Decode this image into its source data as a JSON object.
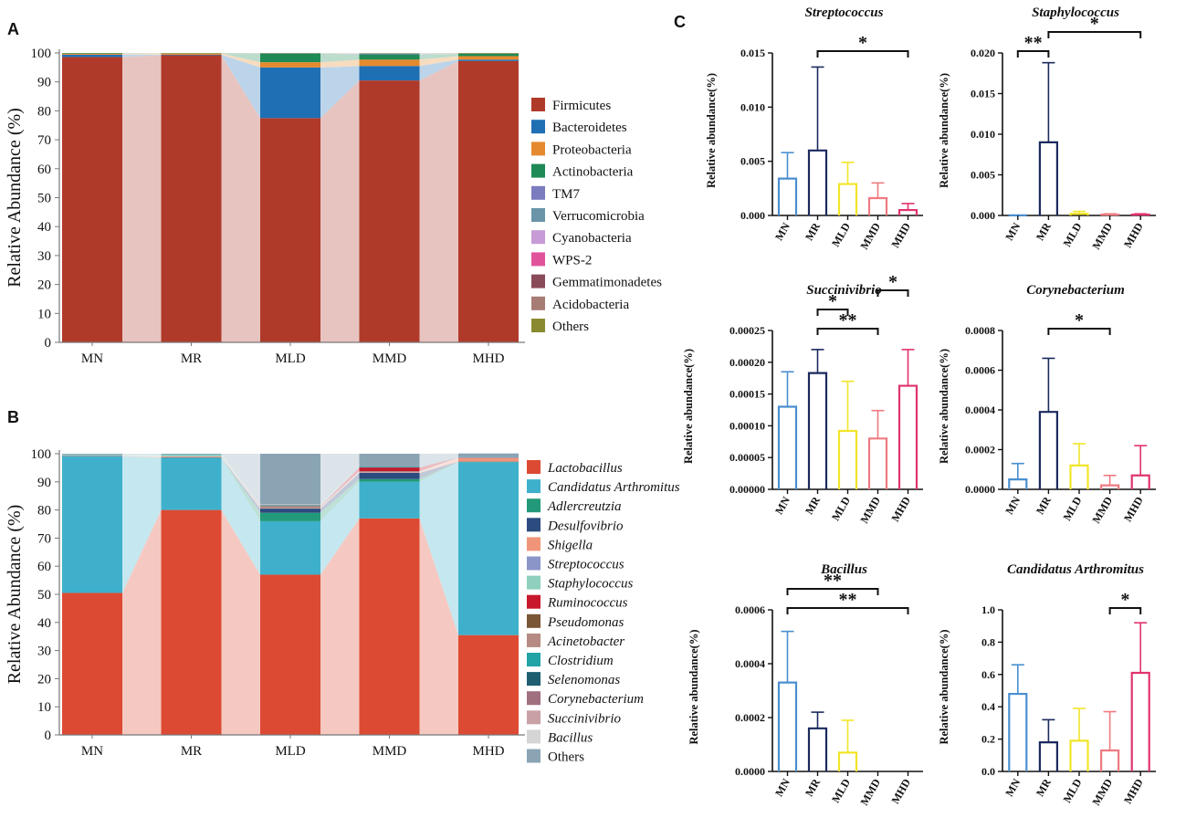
{
  "panel_labels": {
    "a": "A",
    "b": "B",
    "c": "C"
  },
  "chart_data": [
    {
      "type": "bar",
      "subtype": "stacked-100",
      "panel": "A",
      "ylabel": "Relative Abundance (%)",
      "ylim": [
        0,
        100
      ],
      "yticks": [
        0,
        10,
        20,
        30,
        40,
        50,
        60,
        70,
        80,
        90,
        100
      ],
      "categories": [
        "MN",
        "MR",
        "MLD",
        "MMD",
        "MHD"
      ],
      "series": [
        {
          "name": "Firmicutes",
          "color": "#b03a2a",
          "italic": false,
          "values": [
            98.6,
            99.2,
            77.5,
            90.5,
            97.2
          ]
        },
        {
          "name": "Bacteroidetes",
          "color": "#1f6fb4",
          "italic": false,
          "values": [
            0.8,
            0.2,
            17.5,
            5.0,
            0.5
          ]
        },
        {
          "name": "Proteobacteria",
          "color": "#e58a2e",
          "italic": false,
          "values": [
            0.3,
            0.4,
            1.8,
            2.2,
            1.2
          ]
        },
        {
          "name": "Actinobacteria",
          "color": "#1f8a55",
          "italic": false,
          "values": [
            0.2,
            0.1,
            3.0,
            1.8,
            0.8
          ]
        },
        {
          "name": "TM7",
          "color": "#7b7bbf",
          "italic": false,
          "values": [
            0.0,
            0.0,
            0.1,
            0.2,
            0.0
          ]
        },
        {
          "name": "Verrucomicrobia",
          "color": "#6a95a8",
          "italic": false,
          "values": [
            0.0,
            0.0,
            0.0,
            0.1,
            0.1
          ]
        },
        {
          "name": "Cyanobacteria",
          "color": "#c79bd6",
          "italic": false,
          "values": [
            0.0,
            0.0,
            0.0,
            0.1,
            0.0
          ]
        },
        {
          "name": "WPS-2",
          "color": "#e0539b",
          "italic": false,
          "values": [
            0.0,
            0.0,
            0.0,
            0.0,
            0.0
          ]
        },
        {
          "name": "Gemmatimonadetes",
          "color": "#8a4a5a",
          "italic": false,
          "values": [
            0.0,
            0.0,
            0.0,
            0.0,
            0.0
          ]
        },
        {
          "name": "Acidobacteria",
          "color": "#a67c74",
          "italic": false,
          "values": [
            0.0,
            0.0,
            0.0,
            0.0,
            0.0
          ]
        },
        {
          "name": "Others",
          "color": "#8a8a30",
          "italic": false,
          "values": [
            0.1,
            0.1,
            0.1,
            0.1,
            0.2
          ]
        }
      ]
    },
    {
      "type": "bar",
      "subtype": "stacked-100",
      "panel": "B",
      "ylabel": "Relative Abundance (%)",
      "ylim": [
        0,
        100
      ],
      "yticks": [
        0,
        10,
        20,
        30,
        40,
        50,
        60,
        70,
        80,
        90,
        100
      ],
      "categories": [
        "MN",
        "MR",
        "MLD",
        "MMD",
        "MHD"
      ],
      "series": [
        {
          "name": "Lactobacillus",
          "color": "#dd4a33",
          "italic": true,
          "values": [
            50.5,
            80.0,
            57.0,
            77.0,
            35.5
          ]
        },
        {
          "name": "Candidatus Arthromitus",
          "color": "#3fb0cb",
          "italic": true,
          "values": [
            48.5,
            18.5,
            19.0,
            13.0,
            61.5
          ]
        },
        {
          "name": "Adlercreutzia",
          "color": "#229a7a",
          "italic": true,
          "values": [
            0.1,
            0.1,
            3.0,
            1.0,
            0.1
          ]
        },
        {
          "name": "Desulfovibrio",
          "color": "#2c4b7e",
          "italic": true,
          "values": [
            0.1,
            0.1,
            1.5,
            2.2,
            0.1
          ]
        },
        {
          "name": "Shigella",
          "color": "#f0957a",
          "italic": true,
          "values": [
            0.1,
            0.3,
            0.2,
            0.2,
            1.2
          ]
        },
        {
          "name": "Streptococcus",
          "color": "#8b95c8",
          "italic": true,
          "values": [
            0.1,
            0.1,
            0.1,
            0.1,
            0.1
          ]
        },
        {
          "name": "Staphylococcus",
          "color": "#8fcfbd",
          "italic": true,
          "values": [
            0.2,
            0.5,
            0.2,
            0.2,
            0.1
          ]
        },
        {
          "name": "Ruminococcus",
          "color": "#c8182b",
          "italic": true,
          "values": [
            0.0,
            0.0,
            0.2,
            1.4,
            0.1
          ]
        },
        {
          "name": "Pseudomonas",
          "color": "#7a5636",
          "italic": true,
          "values": [
            0.0,
            0.0,
            0.1,
            0.0,
            0.0
          ]
        },
        {
          "name": "Acinetobacter",
          "color": "#b58b84",
          "italic": true,
          "values": [
            0.0,
            0.0,
            0.1,
            0.0,
            0.0
          ]
        },
        {
          "name": "Clostridium",
          "color": "#22a3a6",
          "italic": true,
          "values": [
            0.1,
            0.1,
            0.2,
            0.2,
            0.1
          ]
        },
        {
          "name": "Selenomonas",
          "color": "#1f5e70",
          "italic": true,
          "values": [
            0.0,
            0.0,
            0.1,
            0.0,
            0.0
          ]
        },
        {
          "name": "Corynebacterium",
          "color": "#a0707f",
          "italic": true,
          "values": [
            0.0,
            0.0,
            0.1,
            0.0,
            0.0
          ]
        },
        {
          "name": "Succinivibrio",
          "color": "#c9a0a6",
          "italic": true,
          "values": [
            0.0,
            0.0,
            0.1,
            0.0,
            0.0
          ]
        },
        {
          "name": "Bacillus",
          "color": "#d5d5d5",
          "italic": true,
          "values": [
            0.0,
            0.0,
            0.1,
            0.0,
            0.0
          ]
        },
        {
          "name": "Others",
          "color": "#8aa4b4",
          "italic": false,
          "values": [
            0.3,
            0.3,
            18.0,
            4.7,
            1.3
          ]
        }
      ]
    },
    {
      "type": "bar",
      "subtype": "error-bar",
      "panel": "C",
      "title": "Streptococcus",
      "ylabel": "Relative abundance(%)",
      "ylim": [
        0,
        0.015
      ],
      "yticks": [
        "0.000",
        "0.005",
        "0.010",
        "0.015"
      ],
      "categories": [
        "MN",
        "MR",
        "MLD",
        "MMD",
        "MHD"
      ],
      "values": [
        0.0034,
        0.006,
        0.0029,
        0.0016,
        0.0005
      ],
      "errors": [
        0.0024,
        0.0077,
        0.002,
        0.0014,
        0.0006
      ],
      "colors": [
        "#4a8fd0",
        "#1b2a5e",
        "#f2e528",
        "#f07a80",
        "#e0336f"
      ],
      "significance": [
        {
          "from": "MR",
          "to": "MHD",
          "label": "*"
        }
      ]
    },
    {
      "type": "bar",
      "subtype": "error-bar",
      "panel": "C",
      "title": "Staphylococcus",
      "ylabel": "Relative abundance(%)",
      "ylim": [
        0,
        0.02
      ],
      "yticks": [
        "0.000",
        "0.005",
        "0.010",
        "0.015",
        "0.020"
      ],
      "categories": [
        "MN",
        "MR",
        "MLD",
        "MMD",
        "MHD"
      ],
      "values": [
        1e-05,
        0.009,
        0.0002,
        0.0001,
        0.0001
      ],
      "errors": [
        0.0,
        0.0098,
        0.0003,
        0.0001,
        0.0001
      ],
      "colors": [
        "#4a8fd0",
        "#1b2a5e",
        "#f2e528",
        "#f07a80",
        "#e0336f"
      ],
      "significance": [
        {
          "from": "MN",
          "to": "MR",
          "label": "**"
        },
        {
          "from": "MR",
          "to": "MHD",
          "label": "*"
        }
      ]
    },
    {
      "type": "bar",
      "subtype": "error-bar",
      "panel": "C",
      "title": "Succinivibrio",
      "ylabel": "Relative abundance(%)",
      "ylim": [
        0,
        0.00025
      ],
      "yticks": [
        "0.00000",
        "0.00005",
        "0.00010",
        "0.00015",
        "0.00020",
        "0.00025"
      ],
      "categories": [
        "MN",
        "MR",
        "MLD",
        "MMD",
        "MHD"
      ],
      "values": [
        0.00013,
        0.000183,
        9.2e-05,
        8e-05,
        0.000163
      ],
      "errors": [
        5.5e-05,
        3.7e-05,
        7.8e-05,
        4.4e-05,
        5.7e-05
      ],
      "colors": [
        "#4a8fd0",
        "#1b2a5e",
        "#f2e528",
        "#f07a80",
        "#e0336f"
      ],
      "significance": [
        {
          "from": "MR",
          "to": "MMD",
          "label": "**"
        },
        {
          "from": "MR",
          "to": "MLD",
          "label": "*"
        },
        {
          "from": "MMD",
          "to": "MHD",
          "label": "*"
        }
      ]
    },
    {
      "type": "bar",
      "subtype": "error-bar",
      "panel": "C",
      "title": "Corynebacterium",
      "ylabel": "Relative abundance(%)",
      "ylim": [
        0,
        0.0008
      ],
      "yticks": [
        "0.0000",
        "0.0002",
        "0.0004",
        "0.0006",
        "0.0008"
      ],
      "categories": [
        "MN",
        "MR",
        "MLD",
        "MMD",
        "MHD"
      ],
      "values": [
        5e-05,
        0.00039,
        0.00012,
        2e-05,
        7e-05
      ],
      "errors": [
        8e-05,
        0.00027,
        0.00011,
        5e-05,
        0.00015
      ],
      "colors": [
        "#4a8fd0",
        "#1b2a5e",
        "#f2e528",
        "#f07a80",
        "#e0336f"
      ],
      "significance": [
        {
          "from": "MR",
          "to": "MMD",
          "label": "*"
        }
      ]
    },
    {
      "type": "bar",
      "subtype": "error-bar",
      "panel": "C",
      "title": "Bacillus",
      "ylabel": "Relative abundance(%)",
      "ylim": [
        0,
        0.0006
      ],
      "yticks": [
        "0.0000",
        "0.0002",
        "0.0004",
        "0.0006"
      ],
      "categories": [
        "MN",
        "MR",
        "MLD",
        "MMD",
        "MHD"
      ],
      "values": [
        0.00033,
        0.00016,
        7e-05,
        0.0,
        0.0
      ],
      "errors": [
        0.00019,
        6e-05,
        0.00012,
        0.0,
        0.0
      ],
      "colors": [
        "#4a8fd0",
        "#1b2a5e",
        "#f2e528",
        "#f07a80",
        "#e0336f"
      ],
      "significance": [
        {
          "from": "MN",
          "to": "MHD",
          "label": "**"
        },
        {
          "from": "MN",
          "to": "MMD",
          "label": "**"
        }
      ]
    },
    {
      "type": "bar",
      "subtype": "error-bar",
      "panel": "C",
      "title": "Candidatus Arthromitus",
      "ylabel": "Relative abundance(%)",
      "ylim": [
        0,
        1.0
      ],
      "yticks": [
        "0.0",
        "0.2",
        "0.4",
        "0.6",
        "0.8",
        "1.0"
      ],
      "categories": [
        "MN",
        "MR",
        "MLD",
        "MMD",
        "MHD"
      ],
      "values": [
        0.48,
        0.18,
        0.19,
        0.13,
        0.61
      ],
      "errors": [
        0.18,
        0.14,
        0.2,
        0.24,
        0.31
      ],
      "colors": [
        "#4a8fd0",
        "#1b2a5e",
        "#f2e528",
        "#f07a80",
        "#e0336f"
      ],
      "significance": [
        {
          "from": "MMD",
          "to": "MHD",
          "label": "*"
        }
      ]
    }
  ]
}
